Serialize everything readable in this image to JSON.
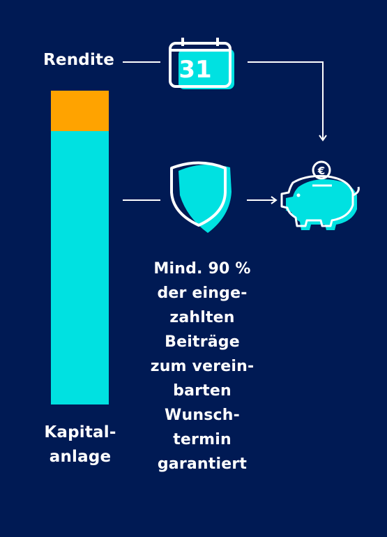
{
  "colors": {
    "background": "#001a54",
    "accent_cyan": "#00e1e1",
    "accent_orange": "#ffa300",
    "line": "#ffffff"
  },
  "labels": {
    "rendite": "Rendite",
    "kapitalanlage": "Kapital-\nanlage",
    "guarantee": "Mind. 90 %\nder einge-\nzahlten\nBeiträge\nzum verein-\nbarten\nWunsch-\ntermin\ngarantiert"
  },
  "icons": {
    "calendar": {
      "name": "calendar-icon",
      "day": "31"
    },
    "shield": {
      "name": "shield-icon"
    },
    "piggy_bank": {
      "name": "piggy-bank-icon",
      "coin_symbol": "€"
    }
  }
}
